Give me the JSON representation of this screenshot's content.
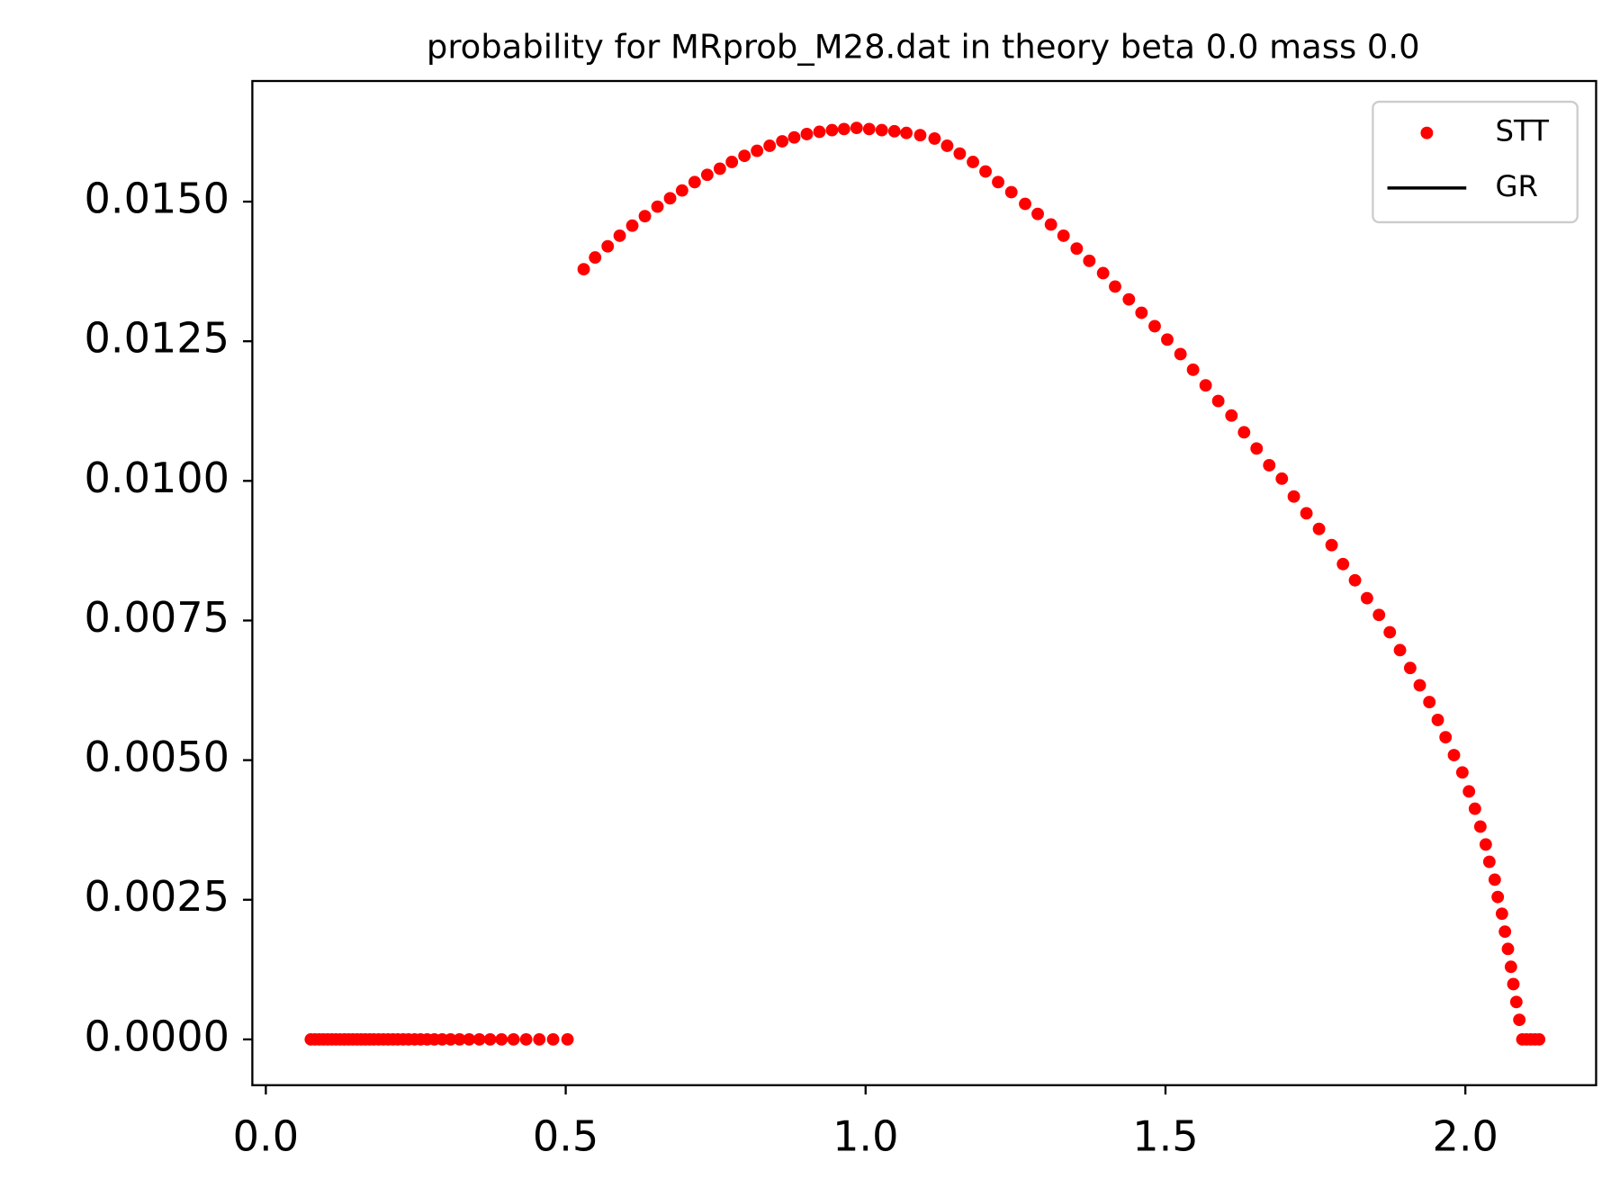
{
  "chart_data": {
    "type": "scatter",
    "title": "probability for MRprob_M28.dat in theory beta 0.0 mass 0.0",
    "xlim": [
      -0.0225,
      2.218
    ],
    "ylim": [
      -0.00082,
      0.01716
    ],
    "xticks": [
      {
        "value": 0,
        "label": "0.0"
      },
      0.5,
      {
        "value": 1,
        "label": "1.0"
      },
      1.5,
      {
        "value": 2,
        "label": "2.0"
      }
    ],
    "yticks": [
      {
        "value": 0,
        "label": "0.0000"
      },
      {
        "value": 0.0025,
        "label": "0.0025"
      },
      {
        "value": 0.005,
        "label": "0.0050"
      },
      {
        "value": 0.0075,
        "label": "0.0075"
      },
      {
        "value": 0.01,
        "label": "0.0100"
      },
      {
        "value": 0.0125,
        "label": "0.0125"
      },
      {
        "value": 0.015,
        "label": "0.0150"
      }
    ],
    "legend": "upper right",
    "series": [
      {
        "name": "STT",
        "color": "#ff0000",
        "style": "dots",
        "x": [
          0.075,
          0.082,
          0.089,
          0.096,
          0.103,
          0.11,
          0.117,
          0.124,
          0.131,
          0.138,
          0.145,
          0.152,
          0.159,
          0.166,
          0.173,
          0.18,
          0.188,
          0.196,
          0.204,
          0.212,
          0.22,
          0.229,
          0.238,
          0.248,
          0.258,
          0.269,
          0.281,
          0.294,
          0.308,
          0.323,
          0.339,
          0.356,
          0.374,
          0.393,
          0.413,
          0.434,
          0.456,
          0.479,
          0.503,
          0.53,
          0.549,
          0.57,
          0.59,
          0.611,
          0.632,
          0.653,
          0.674,
          0.694,
          0.715,
          0.736,
          0.757,
          0.777,
          0.798,
          0.819,
          0.84,
          0.861,
          0.881,
          0.902,
          0.923,
          0.944,
          0.964,
          0.985,
          1.006,
          1.027,
          1.048,
          1.068,
          1.091,
          1.115,
          1.136,
          1.157,
          1.179,
          1.2,
          1.221,
          1.243,
          1.266,
          1.287,
          1.309,
          1.33,
          1.352,
          1.373,
          1.396,
          1.416,
          1.439,
          1.46,
          1.482,
          1.503,
          1.525,
          1.546,
          1.567,
          1.588,
          1.61,
          1.631,
          1.652,
          1.673,
          1.694,
          1.714,
          1.735,
          1.756,
          1.777,
          1.796,
          1.816,
          1.836,
          1.856,
          1.874,
          1.891,
          1.908,
          1.924,
          1.94,
          1.954,
          1.967,
          1.981,
          1.995,
          2.006,
          2.016,
          2.025,
          2.034,
          2.04,
          2.049,
          2.054,
          2.061,
          2.066,
          2.071,
          2.076,
          2.08,
          2.085,
          2.09,
          2.095,
          2.102,
          2.109,
          2.116,
          2.123
        ],
        "values": [
          0,
          0,
          0,
          0,
          0,
          0,
          0,
          0,
          0,
          0,
          0,
          0,
          0,
          0,
          0,
          0,
          0,
          0,
          0,
          0,
          0,
          0,
          0,
          0,
          0,
          0,
          0,
          0,
          0,
          0,
          0,
          0,
          0,
          0,
          0,
          0,
          0,
          0,
          0,
          0.01379,
          0.014,
          0.0142,
          0.01439,
          0.01457,
          0.01474,
          0.01491,
          0.01506,
          0.0152,
          0.01535,
          0.01548,
          0.01559,
          0.01571,
          0.01582,
          0.01591,
          0.016,
          0.01608,
          0.01615,
          0.01621,
          0.01625,
          0.01628,
          0.0163,
          0.01632,
          0.0163,
          0.01628,
          0.01626,
          0.01623,
          0.01619,
          0.01613,
          0.016,
          0.01586,
          0.01571,
          0.01554,
          0.01535,
          0.01517,
          0.01496,
          0.01478,
          0.01459,
          0.01439,
          0.01416,
          0.01394,
          0.01372,
          0.01348,
          0.01325,
          0.01301,
          0.01277,
          0.01253,
          0.01227,
          0.01199,
          0.01171,
          0.01143,
          0.01117,
          0.01087,
          0.01058,
          0.01028,
          0.01004,
          0.00972,
          0.00942,
          0.00914,
          0.00885,
          0.00851,
          0.00822,
          0.0079,
          0.0076,
          0.00729,
          0.00697,
          0.00665,
          0.00634,
          0.00604,
          0.00572,
          0.00541,
          0.00509,
          0.00478,
          0.00444,
          0.00413,
          0.00381,
          0.00349,
          0.00318,
          0.00286,
          0.00255,
          0.00225,
          0.00193,
          0.00162,
          0.0013,
          0.00099,
          0.00067,
          0.00035,
          0,
          0,
          0,
          0,
          0
        ]
      },
      {
        "name": "GR",
        "color": "#000000",
        "style": "line",
        "x": [],
        "values": []
      }
    ]
  }
}
